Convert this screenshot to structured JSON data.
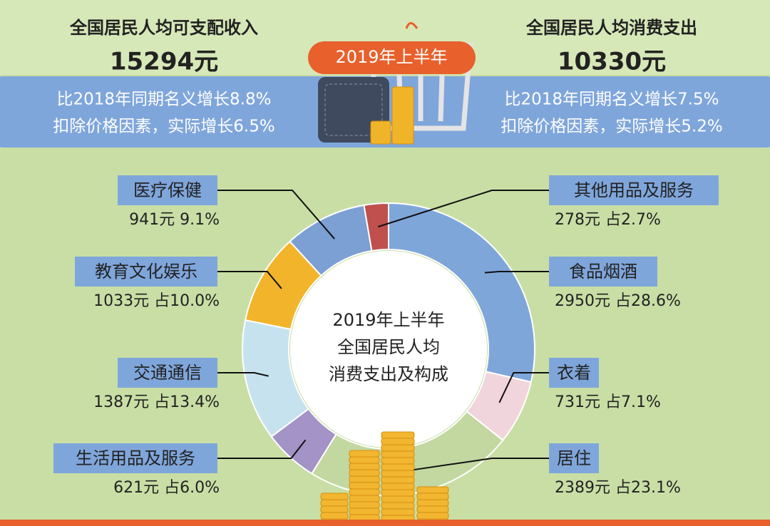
{
  "header": {
    "badge": "2019年上半年",
    "income": {
      "title": "全国居民人均可支配收入",
      "value": "15294元",
      "notes": [
        "比2018年同期名义增长8.8%",
        "扣除价格因素，实际增长6.5%"
      ]
    },
    "spending": {
      "title": "全国居民人均消费支出",
      "value": "10330元",
      "notes": [
        "比2018年同期名义增长7.5%",
        "扣除价格因素，实际增长5.2%"
      ]
    }
  },
  "chart_data": {
    "type": "pie",
    "donut": true,
    "center_label": [
      "2019年上半年",
      "全国居民人均",
      "消费支出及构成"
    ],
    "categories": [
      "其他用品及服务",
      "食品烟酒",
      "衣着",
      "居住",
      "生活用品及服务",
      "交通通信",
      "教育文化娱乐",
      "医疗保健"
    ],
    "values": [
      2.7,
      28.6,
      7.1,
      23.1,
      6.0,
      13.4,
      10.0,
      9.1
    ],
    "value_labels": [
      "278元 占2.7%",
      "2950元 占28.6%",
      "731元 占7.1%",
      "2389元 占23.1%",
      "621元 占6.0%",
      "1387元 占13.4%",
      "1033元 占10.0%",
      "941元 9.1%"
    ],
    "colors": [
      "#c0504d",
      "#7fa6d9",
      "#f1d5dc",
      "#c3d7a0",
      "#a393c6",
      "#c7e2ef",
      "#f2b42a",
      "#7c9fd4"
    ]
  }
}
